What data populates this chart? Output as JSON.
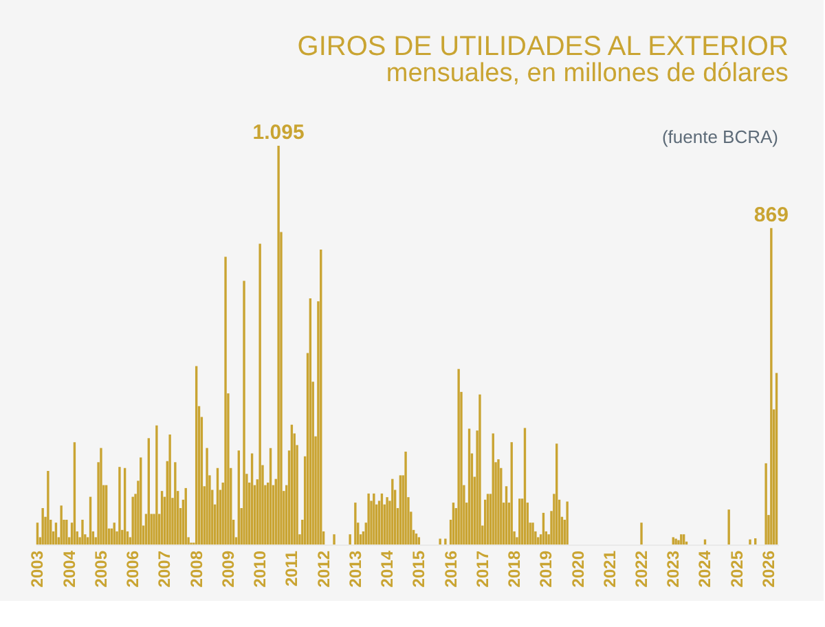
{
  "chart_data": {
    "type": "bar",
    "title": "GIROS DE UTILIDADES AL EXTERIOR",
    "subtitle": "mensuales, en millones de dólares",
    "annotations": [
      "(fuente BCRA)"
    ],
    "color": "#c9a432",
    "categories": [
      "2003",
      null,
      null,
      null,
      null,
      null,
      null,
      null,
      null,
      null,
      null,
      null,
      "2004",
      null,
      null,
      null,
      null,
      null,
      null,
      null,
      null,
      null,
      null,
      null,
      "2005",
      null,
      null,
      null,
      null,
      null,
      null,
      null,
      null,
      null,
      null,
      null,
      "2006",
      null,
      null,
      null,
      null,
      null,
      null,
      null,
      null,
      null,
      null,
      null,
      "2007",
      null,
      null,
      null,
      null,
      null,
      null,
      null,
      null,
      null,
      null,
      null,
      "2008",
      null,
      null,
      null,
      null,
      null,
      null,
      null,
      null,
      null,
      null,
      null,
      "2009",
      null,
      null,
      null,
      null,
      null,
      null,
      null,
      null,
      null,
      null,
      null,
      "2010",
      null,
      null,
      null,
      null,
      null,
      null,
      null,
      null,
      null,
      null,
      null,
      "2011",
      null,
      null,
      null,
      null,
      null,
      null,
      null,
      null,
      null,
      null,
      null,
      "2012",
      null,
      null,
      null,
      null,
      null,
      null,
      null,
      null,
      null,
      null,
      null,
      "2013",
      null,
      null,
      null,
      null,
      null,
      null,
      null,
      null,
      null,
      null,
      null,
      "2014",
      null,
      null,
      null,
      null,
      null,
      null,
      null,
      null,
      null,
      null,
      null,
      "2015",
      null,
      null,
      null,
      null,
      null,
      null,
      null,
      null,
      null,
      null,
      null,
      "2016",
      null,
      null,
      null,
      null,
      null,
      null,
      null,
      null,
      null,
      null,
      null,
      "2017",
      null,
      null,
      null,
      null,
      null,
      null,
      null,
      null,
      null,
      null,
      null,
      "2018",
      null,
      null,
      null,
      null,
      null,
      null,
      null,
      null,
      null,
      null,
      null,
      "2019",
      null,
      null,
      null,
      null,
      null,
      null,
      null,
      null,
      null,
      null,
      null,
      "2020",
      null,
      null,
      null,
      null,
      null,
      null,
      null,
      null,
      null,
      null,
      null,
      "2021",
      null,
      null,
      null,
      null,
      null,
      null,
      null,
      null,
      null,
      null,
      null,
      "2022",
      null,
      null,
      null,
      null,
      null,
      null,
      null,
      null,
      null,
      null,
      null,
      "2023",
      null,
      null,
      null,
      null,
      null,
      null,
      null,
      null,
      null,
      null,
      null,
      "2024",
      null,
      null,
      null,
      null,
      null,
      null,
      null,
      null,
      null,
      null,
      null,
      "2025",
      null,
      null,
      null,
      null,
      null,
      null,
      null,
      null,
      null,
      null,
      null,
      "2026",
      null,
      null,
      null
    ],
    "values": [
      60,
      20,
      100,
      76,
      202,
      68,
      36,
      60,
      20,
      107,
      68,
      68,
      20,
      60,
      281,
      36,
      20,
      68,
      28,
      20,
      131,
      36,
      20,
      226,
      265,
      163,
      163,
      44,
      44,
      60,
      36,
      213,
      40,
      210,
      36,
      20,
      131,
      139,
      175,
      239,
      52,
      84,
      292,
      84,
      84,
      327,
      84,
      147,
      131,
      229,
      302,
      128,
      226,
      147,
      100,
      123,
      155,
      20,
      5,
      5,
      490,
      380,
      350,
      160,
      265,
      190,
      150,
      110,
      210,
      150,
      170,
      790,
      415,
      210,
      68,
      20,
      258,
      100,
      724,
      194,
      170,
      250,
      163,
      179,
      826,
      218,
      163,
      170,
      265,
      163,
      180,
      1095,
      858,
      147,
      163,
      258,
      329,
      305,
      273,
      28,
      68,
      242,
      526,
      676,
      447,
      297,
      668,
      810,
      36,
      0,
      0,
      0,
      28,
      0,
      0,
      0,
      0,
      0,
      28,
      0,
      115,
      60,
      28,
      36,
      60,
      140,
      120,
      140,
      110,
      120,
      140,
      110,
      130,
      120,
      180,
      150,
      100,
      190,
      190,
      255,
      130,
      90,
      40,
      30,
      20,
      0,
      0,
      0,
      0,
      0,
      0,
      0,
      16,
      0,
      16,
      0,
      68,
      115,
      100,
      482,
      419,
      163,
      115,
      318,
      250,
      186,
      313,
      412,
      52,
      123,
      139,
      139,
      305,
      226,
      234,
      210,
      115,
      160,
      115,
      281,
      36,
      20,
      126,
      126,
      320,
      115,
      60,
      60,
      36,
      20,
      28,
      87,
      36,
      28,
      92,
      139,
      277,
      123,
      76,
      68,
      118,
      0,
      0,
      0,
      0,
      0,
      0,
      0,
      0,
      0,
      0,
      0,
      0,
      0,
      0,
      0,
      0,
      0,
      0,
      0,
      0,
      0,
      0,
      0,
      0,
      0,
      0,
      0,
      60,
      0,
      0,
      0,
      0,
      0,
      0,
      0,
      0,
      0,
      0,
      0,
      20,
      16,
      12,
      28,
      28,
      8,
      0,
      0,
      0,
      0,
      0,
      0,
      14,
      0,
      0,
      0,
      0,
      0,
      0,
      0,
      0,
      96,
      0,
      0,
      0,
      0,
      0,
      0,
      0,
      14,
      0,
      17,
      0,
      0,
      0,
      223,
      81,
      869,
      371,
      471
    ],
    "value_labels": [
      null,
      null,
      null,
      null,
      null,
      null,
      null,
      null,
      null,
      null,
      null,
      null,
      null,
      null,
      null,
      null,
      null,
      null,
      null,
      null,
      null,
      null,
      null,
      null,
      null,
      null,
      null,
      null,
      null,
      null,
      null,
      null,
      null,
      null,
      null,
      null,
      null,
      null,
      null,
      null,
      null,
      null,
      null,
      null,
      null,
      null,
      null,
      null,
      null,
      null,
      null,
      null,
      null,
      null,
      null,
      null,
      null,
      null,
      null,
      null,
      null,
      null,
      null,
      null,
      null,
      null,
      null,
      null,
      null,
      null,
      null,
      null,
      null,
      null,
      null,
      null,
      null,
      null,
      null,
      null,
      null,
      null,
      null,
      null,
      null,
      null,
      null,
      null,
      null,
      null,
      null,
      "1.095",
      null,
      null,
      null,
      null,
      null,
      null,
      null,
      null,
      null,
      null,
      null,
      null,
      null,
      null,
      null,
      null,
      null,
      null,
      null,
      null,
      null,
      null,
      null,
      null,
      null,
      null,
      null,
      null,
      null,
      null,
      null,
      null,
      null,
      null,
      null,
      null,
      null,
      null,
      null,
      null,
      null,
      null,
      null,
      null,
      null,
      null,
      null,
      null,
      null,
      null,
      null,
      null,
      null,
      null,
      null,
      null,
      null,
      null,
      null,
      null,
      null,
      null,
      null,
      null,
      null,
      null,
      null,
      null,
      null,
      null,
      null,
      null,
      null,
      null,
      null,
      null,
      null,
      null,
      null,
      null,
      null,
      null,
      null,
      null,
      null,
      null,
      null,
      null,
      null,
      null,
      null,
      null,
      null,
      null,
      null,
      null,
      null,
      null,
      null,
      null,
      null,
      null,
      null,
      null,
      null,
      null,
      null,
      null,
      null,
      null,
      null,
      null,
      null,
      null,
      null,
      null,
      null,
      null,
      null,
      null,
      null,
      null,
      null,
      null,
      null,
      null,
      null,
      null,
      null,
      null,
      null,
      null,
      null,
      null,
      null,
      null,
      null,
      null,
      null,
      null,
      null,
      null,
      null,
      null,
      null,
      null,
      null,
      null,
      null,
      null,
      null,
      null,
      null,
      null,
      null,
      null,
      null,
      null,
      null,
      null,
      null,
      null,
      null,
      null,
      null,
      null,
      null,
      null,
      null,
      null,
      null,
      null,
      null,
      null,
      null,
      null,
      null,
      null,
      null,
      null,
      null,
      null,
      null,
      null,
      null,
      "869",
      null,
      null
    ],
    "legend": false,
    "grid": false
  }
}
